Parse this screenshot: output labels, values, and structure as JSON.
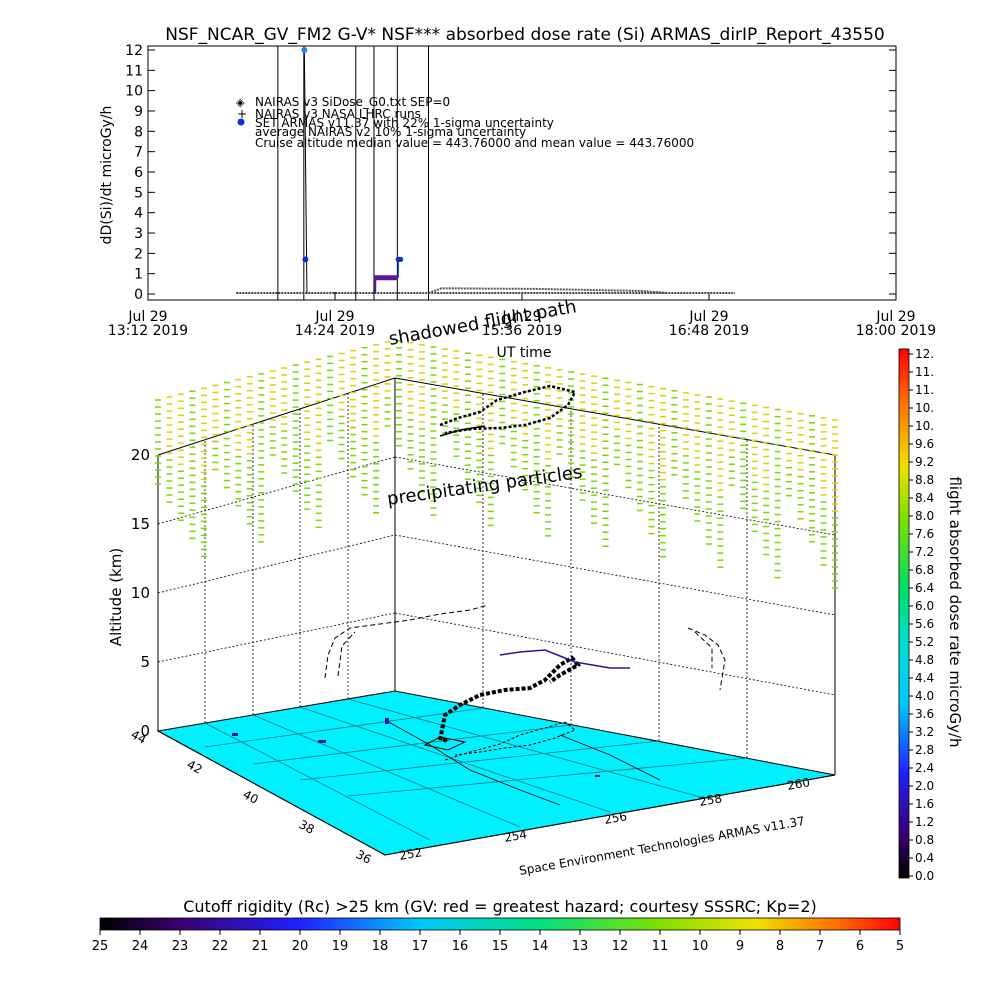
{
  "figure": {
    "title": "NSF_NCAR_GV_FM2 G-V* NSF*** absorbed dose rate (Si) ARMAS_dirIP_Report_43550",
    "credit": "Space Environment Technologies ARMAS v11.37",
    "annotations": {
      "shadowed": "shadowed flight path",
      "precip": "precipitating particles"
    }
  },
  "chart_data": [
    {
      "type": "line",
      "title": "NSF_NCAR_GV_FM2 G-V* NSF*** absorbed dose rate (Si) ARMAS_dirIP_Report_43550",
      "xlabel": "UT time",
      "ylabel": "dD(Si)/dt microGy/h",
      "ylim": [
        0,
        12
      ],
      "yticks": [
        "0",
        "1",
        "2",
        "3",
        "4",
        "5",
        "6",
        "7",
        "8",
        "9",
        "10",
        "11",
        "12"
      ],
      "xticks": [
        {
          "date": "Jul 29",
          "time": "13:12 2019"
        },
        {
          "date": "Jul 29",
          "time": "14:24 2019"
        },
        {
          "date": "Jul 29",
          "time": "15:36 2019"
        },
        {
          "date": "Jul 29",
          "time": "16:48 2019"
        },
        {
          "date": "Jul 29",
          "time": "18:00 2019"
        }
      ],
      "legend": [
        {
          "symbol": "◈",
          "text": "NAIRAS v3 SiDose_G0.txt SEP=0"
        },
        {
          "symbol": "+",
          "text": "NAIRAS v3 NASA LHRC runs"
        },
        {
          "symbol": "●",
          "text": "SET ARMAS v11.37 with 22% 1-sigma uncertainty"
        },
        {
          "symbol": "",
          "text": "average NAIRAS v2 10% 1-sigma uncertainty"
        },
        {
          "symbol": "",
          "text": "Cruise altitude median value = 443.76000 and mean value = 443.76000"
        }
      ],
      "series": [
        {
          "name": "NAIRAS v3 SiDose_G0.txt SEP=0",
          "x_minutes": [
            0,
            288
          ],
          "values": [
            0.05,
            0.05
          ],
          "segments": [
            [
              34,
              226
            ]
          ],
          "bump": [
            [
              113,
              0.25
            ],
            [
              180,
              0.15
            ]
          ]
        },
        {
          "name": "SET ARMAS v11.37 with 22% 1-sigma uncertainty",
          "x_minutes": [
            60.5,
            60.8,
            61,
            87,
            88,
            96,
            97
          ],
          "values": [
            12,
            1.7,
            0,
            0.8,
            0.8,
            0.8,
            1.7
          ]
        }
      ],
      "vertical_markers_minutes": [
        50,
        60,
        80,
        87,
        96,
        108
      ]
    },
    {
      "type": "scatter",
      "xlabel": "",
      "ylabel": "Altitude (km)",
      "zticks": [
        "0",
        "5",
        "10",
        "15",
        "20"
      ],
      "lat_ticks": [
        "36",
        "38",
        "40",
        "42",
        "44"
      ],
      "lon_ticks": [
        "252",
        "254",
        "256",
        "258",
        "260"
      ],
      "colorbar": {
        "label": "flight absorbed dose rate microGy/h",
        "ticks": [
          "0.0",
          "0.4",
          "0.8",
          "1.2",
          "1.6",
          "2.0",
          "2.4",
          "2.8",
          "3.2",
          "3.6",
          "4.0",
          "4.4",
          "4.8",
          "5.2",
          "5.6",
          "6.0",
          "6.4",
          "6.8",
          "7.2",
          "7.6",
          "8.0",
          "8.4",
          "8.8",
          "9.2",
          "9.6",
          "10.",
          "10.",
          "11.",
          "11.",
          "12."
        ]
      }
    },
    {
      "type": "heatmap",
      "title": "Cutoff rigidity (Rc) >25 km (GV: red = greatest hazard; courtesy SSSRC; Kp=2)",
      "ticks": [
        "25",
        "24",
        "23",
        "22",
        "21",
        "20",
        "19",
        "18",
        "17",
        "16",
        "15",
        "14",
        "13",
        "12",
        "11",
        "10",
        "9",
        "8",
        "7",
        "6",
        "5"
      ]
    }
  ],
  "colors": {
    "floor": "#00f0ff",
    "precip_yellow": "#d8d400",
    "precip_green": "#7ad800",
    "armas_blue": "#1030d0",
    "purple": "#5a1a9a"
  }
}
